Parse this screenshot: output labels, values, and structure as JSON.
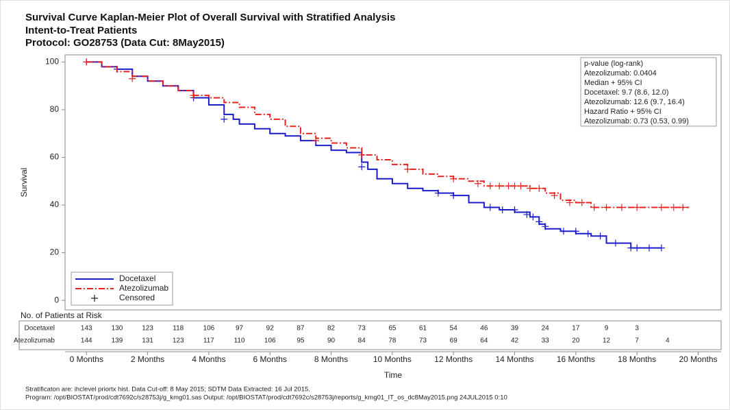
{
  "chart_data": {
    "type": "kaplan-meier",
    "title": [
      "Survival Curve Kaplan-Meier Plot of Overall Survival with Stratified Analysis",
      "Intent-to-Treat Patients",
      "Protocol: GO28753 (Data Cut: 8May2015)"
    ],
    "x_label": "Time",
    "y_label": "Survival",
    "xlim": [
      -0.7,
      20.75
    ],
    "ylim": [
      -4,
      103
    ],
    "xticks": [
      {
        "value": 0,
        "label": "0 Months"
      },
      {
        "value": 2,
        "label": "2 Months"
      },
      {
        "value": 4,
        "label": "4 Months"
      },
      {
        "value": 6,
        "label": "6 Months"
      },
      {
        "value": 8,
        "label": "8 Months"
      },
      {
        "value": 10,
        "label": "10 Months"
      },
      {
        "value": 12,
        "label": "12 Months"
      },
      {
        "value": 14,
        "label": "14 Months"
      },
      {
        "value": 16,
        "label": "16 Months"
      },
      {
        "value": 18,
        "label": "18 Months"
      },
      {
        "value": 20,
        "label": "20 Months"
      }
    ],
    "yticks": [
      0,
      20,
      40,
      60,
      80,
      100
    ],
    "legend_position": "lower left",
    "censored_label": "Censored",
    "series": [
      {
        "name": "Docetaxel",
        "color": "#1a1acc",
        "dash": "solid",
        "x": [
          0,
          0.5,
          1,
          1.5,
          2,
          2.5,
          3,
          3.5,
          4,
          4.5,
          4.8,
          5,
          5.5,
          6,
          6.5,
          7,
          7.5,
          8,
          8.5,
          9,
          9.2,
          9.5,
          10,
          10.5,
          11,
          11.5,
          12,
          12.5,
          13,
          13.5,
          14,
          14.5,
          14.8,
          15,
          15.5,
          16,
          16.5,
          17,
          17.8,
          18.8
        ],
        "values": [
          100,
          98,
          97,
          94,
          92,
          90,
          88,
          85,
          82,
          78,
          76,
          74,
          72,
          70,
          69,
          67,
          65,
          63,
          62,
          58,
          55,
          51,
          49,
          47,
          46,
          45,
          44,
          41,
          39,
          38,
          37,
          35,
          32,
          30,
          29,
          28,
          27,
          24,
          22,
          22
        ],
        "censored": {
          "x": [
            0,
            1,
            3.5,
            4.5,
            9,
            11.5,
            12,
            13.2,
            13.6,
            14,
            14.4,
            14.6,
            14.8,
            15,
            15.6,
            16,
            16.4,
            16.8,
            17.3,
            17.8,
            18,
            18.4,
            18.8
          ],
          "values": [
            100,
            97,
            85,
            76,
            56,
            45,
            44,
            39,
            38,
            38,
            36,
            35,
            33,
            31,
            29,
            29,
            28,
            27,
            24,
            22,
            22,
            22,
            22
          ]
        }
      },
      {
        "name": "Atezolizumab",
        "color": "#e8201e",
        "dash": "dashdot",
        "x": [
          0,
          0.5,
          1,
          1.5,
          2,
          2.5,
          3,
          3.5,
          4,
          4.5,
          5,
          5.5,
          6,
          6.5,
          7,
          7.5,
          8,
          8.5,
          9,
          9.5,
          10,
          10.5,
          11,
          11.5,
          12,
          12.5,
          13,
          14,
          14.5,
          15,
          15.5,
          16,
          16.5,
          19.7
        ],
        "values": [
          100,
          98,
          96,
          94,
          92,
          90,
          88,
          86,
          85,
          83,
          81,
          78,
          76,
          73,
          70,
          68,
          66,
          64,
          61,
          59,
          57,
          55,
          53,
          52,
          51,
          50,
          48,
          48,
          47,
          45,
          42,
          41,
          39,
          39
        ],
        "censored": {
          "x": [
            0,
            1.5,
            3.5,
            7.5,
            9,
            10.5,
            12,
            12.8,
            13.2,
            13.5,
            13.8,
            14,
            14.2,
            14.5,
            14.8,
            15.3,
            15.8,
            16.2,
            16.6,
            17,
            17.5,
            18,
            18.8,
            19.2,
            19.5
          ],
          "values": [
            100,
            93,
            86,
            67,
            61,
            55,
            51,
            49,
            48,
            48,
            48,
            48,
            48,
            47,
            47,
            44,
            41,
            41,
            39,
            39,
            39,
            39,
            39,
            39,
            39
          ]
        }
      }
    ],
    "annotation": [
      "p-value (log-rank)",
      "Atezolizumab: 0.0404",
      "Median + 95% CI",
      "Docetaxel: 9.7 (8.6, 12.0)",
      "Atezolizumab: 12.6 (9.7, 16.4)",
      "Hazard Ratio + 95% CI",
      "Atezolizumab: 0.73 (0.53, 0.99)"
    ],
    "risk_table": {
      "title": "No. of Patients at Risk",
      "rows": [
        {
          "name": "Docetaxel",
          "x": [
            0,
            1,
            2,
            3,
            4,
            5,
            6,
            7,
            8,
            9,
            10,
            11,
            12,
            13,
            14,
            15,
            16,
            17,
            18
          ],
          "values": [
            143,
            130,
            123,
            118,
            106,
            97,
            92,
            87,
            82,
            73,
            65,
            61,
            54,
            46,
            39,
            24,
            17,
            9,
            3
          ]
        },
        {
          "name": "Atezolizumab",
          "x": [
            0,
            1,
            2,
            3,
            4,
            5,
            6,
            7,
            8,
            9,
            10,
            11,
            12,
            13,
            14,
            15,
            16,
            17,
            18,
            19
          ],
          "values": [
            144,
            139,
            131,
            123,
            117,
            110,
            106,
            95,
            90,
            84,
            78,
            73,
            69,
            64,
            42,
            33,
            20,
            12,
            7,
            4
          ]
        }
      ]
    },
    "footnotes": [
      "Stratificaton are: ihclevel priortx hist. Data Cut-off: 8 May 2015; SDTM Data Extracted: 16 Jul 2015.",
      "Program: /opt/BIOSTAT/prod/cdt7692c/s28753j/g_kmg01.sas Output: /opt/BIOSTAT/prod/cdt7692c/s28753j/reports/g_kmg01_IT_os_dc8May2015.png 24JUL2015 0:10"
    ]
  }
}
